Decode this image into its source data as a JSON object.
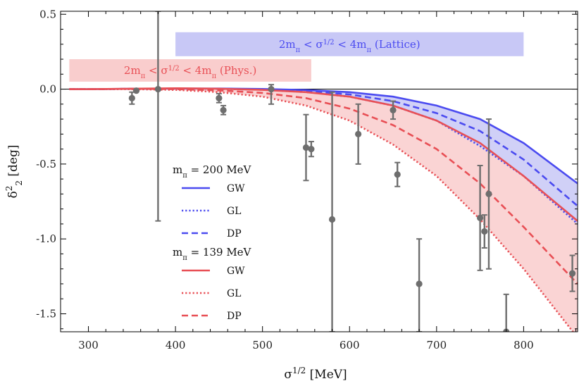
{
  "chart_data": {
    "type": "line",
    "xlabel": "σ^{1/2} [MeV]",
    "ylabel": "δ^2_2 [deg]",
    "xlim": [
      268,
      862
    ],
    "ylim": [
      -1.62,
      0.52
    ],
    "x_ticks": [
      300,
      400,
      500,
      600,
      700,
      800
    ],
    "x_tick_labels": [
      "300",
      "400",
      "500",
      "600",
      "700",
      "800"
    ],
    "y_ticks": [
      0.5,
      0.0,
      -0.5,
      -1.0,
      -1.5
    ],
    "y_tick_labels": [
      "0.5",
      "0.0",
      "-0.5",
      "-1.0",
      "-1.5"
    ],
    "colors": {
      "blue": "#4b4bf0",
      "red": "#e84f55",
      "blue_band": "#c8c8f6",
      "red_band": "#f9cdcd",
      "points": "#6e6e6e"
    },
    "bands": [
      {
        "name": "lattice",
        "label": "2m_π < σ^{1/2} < 4m_π (Lattice)",
        "x_range": [
          400,
          800
        ],
        "color": "blue"
      },
      {
        "name": "phys",
        "label": "2m_π < σ^{1/2} < 4m_π (Phys.)",
        "x_range": [
          278,
          556
        ],
        "color": "red"
      }
    ],
    "legend": {
      "groups": [
        {
          "header": "m_π = 200 MeV",
          "color": "blue",
          "entries": [
            {
              "style": "solid",
              "label": "GW"
            },
            {
              "style": "dotted",
              "label": "GL"
            },
            {
              "style": "dashed",
              "label": "DP"
            }
          ]
        },
        {
          "header": "m_π = 139 MeV",
          "color": "red",
          "entries": [
            {
              "style": "solid",
              "label": "GW"
            },
            {
              "style": "dotted",
              "label": "GL"
            },
            {
              "style": "dashed",
              "label": "DP"
            }
          ]
        }
      ]
    },
    "x": [
      278,
      300,
      350,
      400,
      450,
      500,
      550,
      600,
      650,
      700,
      750,
      800,
      862
    ],
    "series": [
      {
        "name": "GW 200",
        "color": "blue",
        "style": "solid",
        "values": [
          0,
          0,
          0.002,
          0.004,
          0.004,
          0.001,
          -0.006,
          -0.02,
          -0.05,
          -0.11,
          -0.2,
          -0.36,
          -0.63
        ]
      },
      {
        "name": "GL 200",
        "color": "blue",
        "style": "dotted",
        "values": [
          0,
          0,
          0.002,
          0.003,
          0.002,
          -0.004,
          -0.02,
          -0.05,
          -0.11,
          -0.21,
          -0.38,
          -0.58,
          -0.9
        ]
      },
      {
        "name": "DP 200",
        "color": "blue",
        "style": "dashed",
        "values": [
          0,
          0,
          0.002,
          0.003,
          0.003,
          -0.001,
          -0.012,
          -0.035,
          -0.08,
          -0.16,
          -0.28,
          -0.47,
          -0.78
        ]
      },
      {
        "name": "GW 139",
        "color": "red",
        "style": "solid",
        "values": [
          0,
          0,
          0.003,
          0.006,
          0.003,
          -0.005,
          -0.02,
          -0.05,
          -0.11,
          -0.21,
          -0.36,
          -0.58,
          -0.88
        ]
      },
      {
        "name": "GL 139",
        "color": "red",
        "style": "dotted",
        "values": [
          0,
          0,
          0.0,
          -0.005,
          -0.02,
          -0.05,
          -0.11,
          -0.21,
          -0.37,
          -0.58,
          -0.87,
          -1.2,
          -1.66
        ]
      },
      {
        "name": "DP 139",
        "color": "red",
        "style": "dashed",
        "values": [
          0,
          0,
          0.002,
          0.0,
          -0.008,
          -0.025,
          -0.06,
          -0.13,
          -0.24,
          -0.4,
          -0.63,
          -0.92,
          -1.3
        ]
      }
    ],
    "data_points": [
      {
        "x": 350,
        "y": -0.06,
        "lo": -0.1,
        "hi": -0.02
      },
      {
        "x": 355,
        "y": -0.01,
        "lo": -0.01,
        "hi": -0.01
      },
      {
        "x": 380,
        "y": 0.0,
        "lo": -0.88,
        "hi": 0.52
      },
      {
        "x": 450,
        "y": -0.06,
        "lo": -0.09,
        "hi": -0.03
      },
      {
        "x": 455,
        "y": -0.14,
        "lo": -0.17,
        "hi": -0.11
      },
      {
        "x": 510,
        "y": 0.0,
        "lo": -0.1,
        "hi": 0.03
      },
      {
        "x": 550,
        "y": -0.39,
        "lo": -0.61,
        "hi": -0.17
      },
      {
        "x": 556,
        "y": -0.4,
        "lo": -0.45,
        "hi": -0.35
      },
      {
        "x": 580,
        "y": -0.87,
        "lo": -1.62,
        "hi": -0.02
      },
      {
        "x": 610,
        "y": -0.3,
        "lo": -0.5,
        "hi": -0.1
      },
      {
        "x": 650,
        "y": -0.14,
        "lo": -0.2,
        "hi": -0.08
      },
      {
        "x": 655,
        "y": -0.57,
        "lo": -0.65,
        "hi": -0.49
      },
      {
        "x": 680,
        "y": -1.3,
        "lo": -1.62,
        "hi": -1.0
      },
      {
        "x": 750,
        "y": -0.86,
        "lo": -1.21,
        "hi": -0.51
      },
      {
        "x": 755,
        "y": -0.95,
        "lo": -1.06,
        "hi": -0.84
      },
      {
        "x": 760,
        "y": -0.7,
        "lo": -1.2,
        "hi": -0.2
      },
      {
        "x": 780,
        "y": -1.62,
        "lo": -1.62,
        "hi": -1.37
      },
      {
        "x": 856,
        "y": -1.23,
        "lo": -1.35,
        "hi": -1.11
      }
    ]
  }
}
